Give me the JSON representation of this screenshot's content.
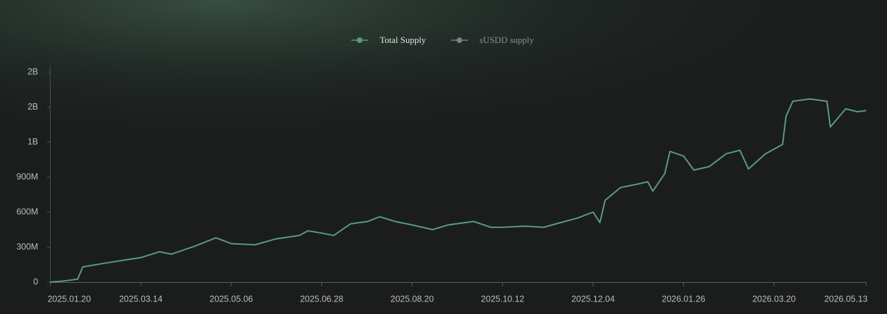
{
  "chart_data": {
    "type": "line",
    "xlim": [
      "2025.01.20",
      "2026.05.13"
    ],
    "xticks": [
      "2025.01.20",
      "2025.03.14",
      "2025.05.06",
      "2025.06.28",
      "2025.08.20",
      "2025.10.12",
      "2025.12.04",
      "2026.01.26",
      "2026.03.20",
      "2026.05.13"
    ],
    "ylim": [
      0,
      1800000000
    ],
    "yticks": [
      0,
      {
        "value": 300000000,
        "label": "300M"
      },
      {
        "value": 600000000,
        "label": "600M"
      },
      {
        "value": 900000000,
        "label": "900M"
      },
      {
        "value": 1200000000,
        "label": "1B"
      },
      {
        "value": 1500000000,
        "label": "2B"
      },
      {
        "value": 1800000000,
        "label": "2B"
      }
    ],
    "x": [
      "2025.01.20",
      "2025.01.28",
      "2025.02.05",
      "2025.02.08",
      "2025.02.20",
      "2025.03.05",
      "2025.03.14",
      "2025.03.25",
      "2025.04.01",
      "2025.04.15",
      "2025.04.27",
      "2025.05.06",
      "2025.05.20",
      "2025.06.01",
      "2025.06.15",
      "2025.06.20",
      "2025.06.28",
      "2025.07.05",
      "2025.07.15",
      "2025.07.25",
      "2025.08.01",
      "2025.08.10",
      "2025.08.20",
      "2025.09.01",
      "2025.09.10",
      "2025.09.25",
      "2025.10.05",
      "2025.10.12",
      "2025.10.25",
      "2025.11.05",
      "2025.11.15",
      "2025.11.25",
      "2025.12.04",
      "2025.12.08",
      "2025.12.11",
      "2025.12.20",
      "2025.12.30",
      "2026.01.05",
      "2026.01.08",
      "2026.01.15",
      "2026.01.18",
      "2026.01.26",
      "2026.02.01",
      "2026.02.10",
      "2026.02.20",
      "2026.02.28",
      "2026.03.05",
      "2026.03.15",
      "2026.03.25",
      "2026.03.27",
      "2026.03.31",
      "2026.04.10",
      "2026.04.20",
      "2026.04.22",
      "2026.05.01",
      "2026.05.08",
      "2026.05.13"
    ],
    "series": [
      {
        "name": "Total Supply",
        "color": "#5b9c7a",
        "values": [
          0,
          10000000,
          25000000,
          130000000,
          160000000,
          190000000,
          210000000,
          260000000,
          240000000,
          310000000,
          380000000,
          330000000,
          320000000,
          370000000,
          400000000,
          440000000,
          420000000,
          400000000,
          500000000,
          520000000,
          560000000,
          520000000,
          490000000,
          450000000,
          490000000,
          520000000,
          470000000,
          470000000,
          480000000,
          470000000,
          510000000,
          550000000,
          600000000,
          510000000,
          700000000,
          810000000,
          840000000,
          860000000,
          780000000,
          930000000,
          1120000000,
          1080000000,
          960000000,
          990000000,
          1100000000,
          1130000000,
          970000000,
          1100000000,
          1180000000,
          1420000000,
          1550000000,
          1570000000,
          1550000000,
          1330000000,
          1485000000,
          1460000000,
          1470000000
        ]
      },
      {
        "name": "sUSDD supply",
        "color": "#7c807e",
        "values": [
          null,
          null,
          null,
          null,
          null,
          null,
          null,
          null,
          null,
          null,
          null,
          null,
          null,
          null,
          null,
          null,
          null,
          null,
          null,
          null,
          null,
          null,
          null,
          null,
          null,
          null,
          null,
          null,
          null,
          null,
          null,
          null,
          null,
          null,
          null,
          null,
          null,
          null,
          null,
          null,
          null,
          null,
          null,
          null,
          null,
          null,
          null,
          null,
          null,
          null,
          null,
          null,
          null,
          null,
          null,
          null,
          null
        ]
      }
    ]
  }
}
